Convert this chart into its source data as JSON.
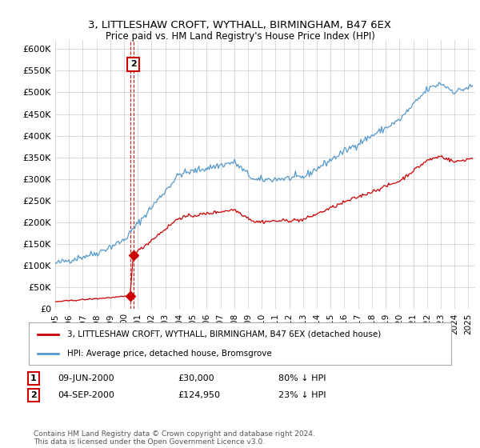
{
  "title": "3, LITTLESHAW CROFT, WYTHALL, BIRMINGHAM, B47 6EX",
  "subtitle": "Price paid vs. HM Land Registry's House Price Index (HPI)",
  "ylim": [
    0,
    620000
  ],
  "yticks": [
    0,
    50000,
    100000,
    150000,
    200000,
    250000,
    300000,
    350000,
    400000,
    450000,
    500000,
    550000,
    600000
  ],
  "xlim_start": 1995.0,
  "xlim_end": 2025.5,
  "legend_label_red": "3, LITTLESHAW CROFT, WYTHALL, BIRMINGHAM, B47 6EX (detached house)",
  "legend_label_blue": "HPI: Average price, detached house, Bromsgrove",
  "transaction1_date": "09-JUN-2000",
  "transaction1_price": "£30,000",
  "transaction1_hpi": "80% ↓ HPI",
  "transaction2_date": "04-SEP-2000",
  "transaction2_price": "£124,950",
  "transaction2_hpi": "23% ↓ HPI",
  "footer": "Contains HM Land Registry data © Crown copyright and database right 2024.\nThis data is licensed under the Open Government Licence v3.0.",
  "red_color": "#cc0000",
  "blue_color": "#5599cc",
  "bg_color": "#ffffff",
  "grid_color": "#cccccc",
  "transaction1_x": 2000.44,
  "transaction1_y": 30000,
  "transaction2_x": 2000.67,
  "transaction2_y": 124950
}
